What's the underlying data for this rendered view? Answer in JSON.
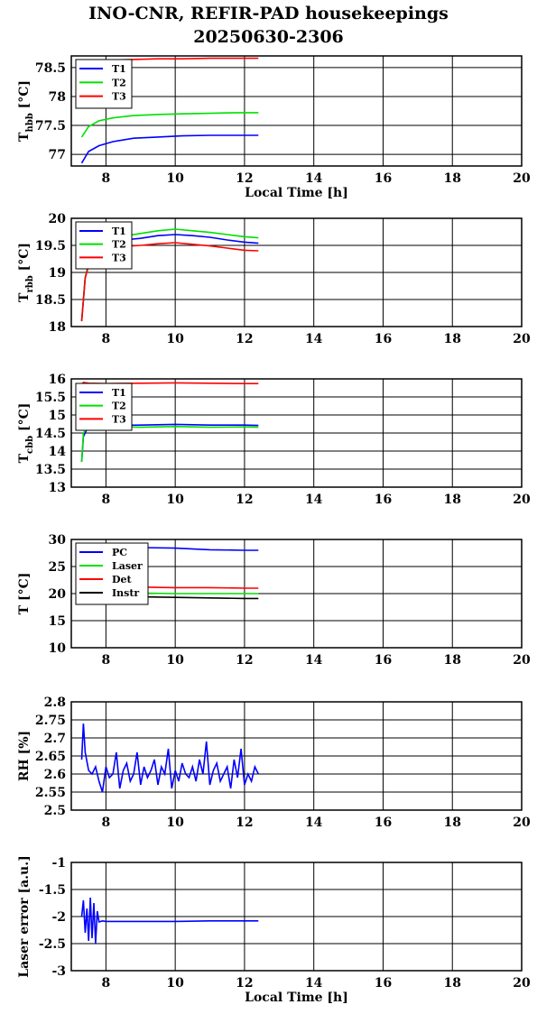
{
  "title": "INO-CNR, REFIR-PAD housekeepings",
  "subtitle": "20250630-2306",
  "colors": {
    "blue": "#0000ff",
    "green": "#00e000",
    "red": "#ff0000",
    "black": "#000000"
  },
  "chart_data": [
    {
      "type": "line",
      "ylabel": {
        "main": "T",
        "sub": "hbb",
        "unit": " [°C]"
      },
      "xlabel": "Local Time [h]",
      "xlim": [
        7,
        20
      ],
      "ylim": [
        76.8,
        78.7
      ],
      "xticks": [
        8,
        10,
        12,
        14,
        16,
        18,
        20
      ],
      "yticks": [
        77,
        77.5,
        78,
        78.5
      ],
      "ytick_labels": [
        "77",
        "77.5",
        "78",
        "78.5"
      ],
      "grid": true,
      "legend": "top-left",
      "series": [
        {
          "name": "T1",
          "color": "#0000ff",
          "x": [
            7.3,
            7.5,
            7.8,
            8.2,
            8.8,
            9.5,
            10.2,
            11,
            11.8,
            12.4
          ],
          "y": [
            76.85,
            77.05,
            77.15,
            77.22,
            77.28,
            77.3,
            77.32,
            77.33,
            77.33,
            77.33
          ]
        },
        {
          "name": "T2",
          "color": "#00e000",
          "x": [
            7.3,
            7.5,
            7.8,
            8.2,
            8.8,
            9.5,
            10.2,
            11,
            11.8,
            12.4
          ],
          "y": [
            77.3,
            77.48,
            77.58,
            77.63,
            77.67,
            77.69,
            77.7,
            77.71,
            77.72,
            77.72
          ]
        },
        {
          "name": "T3",
          "color": "#ff0000",
          "x": [
            7.3,
            7.5,
            7.8,
            8.2,
            8.8,
            9.5,
            10.2,
            11,
            11.8,
            12.4
          ],
          "y": [
            78.55,
            78.6,
            78.62,
            78.63,
            78.64,
            78.65,
            78.65,
            78.66,
            78.66,
            78.66
          ]
        }
      ]
    },
    {
      "type": "line",
      "ylabel": {
        "main": "T",
        "sub": "rbb",
        "unit": " [°C]"
      },
      "xlabel": "",
      "xlim": [
        7,
        20
      ],
      "ylim": [
        18,
        20
      ],
      "xticks": [
        8,
        10,
        12,
        14,
        16,
        18,
        20
      ],
      "yticks": [
        18,
        18.5,
        19,
        19.5,
        20
      ],
      "ytick_labels": [
        "18",
        "18.5",
        "19",
        "19.5",
        "20"
      ],
      "grid": true,
      "legend": "top-left",
      "series": [
        {
          "name": "T1",
          "color": "#0000ff",
          "x": [
            7.3,
            7.4,
            7.6,
            8,
            8.5,
            9,
            9.5,
            10,
            10.5,
            11,
            11.5,
            12,
            12.4
          ],
          "y": [
            18.1,
            18.9,
            19.4,
            19.55,
            19.6,
            19.63,
            19.68,
            19.7,
            19.68,
            19.65,
            19.6,
            19.56,
            19.54
          ]
        },
        {
          "name": "T2",
          "color": "#00e000",
          "x": [
            7.3,
            7.4,
            7.6,
            8,
            8.5,
            9,
            9.5,
            10,
            10.5,
            11,
            11.5,
            12,
            12.4
          ],
          "y": [
            18.1,
            18.9,
            19.45,
            19.6,
            19.67,
            19.72,
            19.77,
            19.8,
            19.77,
            19.74,
            19.7,
            19.66,
            19.64
          ]
        },
        {
          "name": "T3",
          "color": "#ff0000",
          "x": [
            7.3,
            7.4,
            7.6,
            8,
            8.5,
            9,
            9.5,
            10,
            10.5,
            11,
            11.5,
            12,
            12.4
          ],
          "y": [
            18.1,
            18.9,
            19.35,
            19.45,
            19.48,
            19.5,
            19.53,
            19.55,
            19.52,
            19.49,
            19.45,
            19.41,
            19.4
          ]
        }
      ]
    },
    {
      "type": "line",
      "ylabel": {
        "main": "T",
        "sub": "cbb",
        "unit": " [°C]"
      },
      "xlabel": "",
      "xlim": [
        7,
        20
      ],
      "ylim": [
        13,
        16
      ],
      "xticks": [
        8,
        10,
        12,
        14,
        16,
        18,
        20
      ],
      "yticks": [
        13,
        13.5,
        14,
        14.5,
        15,
        15.5,
        16
      ],
      "ytick_labels": [
        "13",
        "13.5",
        "14",
        "14.5",
        "15",
        "15.5",
        "16"
      ],
      "grid": true,
      "legend": "top-left",
      "series": [
        {
          "name": "T1",
          "color": "#0000ff",
          "x": [
            7.3,
            7.35,
            7.5,
            8,
            9,
            10,
            11,
            12,
            12.4
          ],
          "y": [
            13.7,
            14.4,
            14.7,
            14.71,
            14.72,
            14.74,
            14.72,
            14.72,
            14.71
          ]
        },
        {
          "name": "T2",
          "color": "#00e000",
          "x": [
            7.3,
            7.35,
            7.5,
            8,
            9,
            10,
            11,
            12,
            12.4
          ],
          "y": [
            13.7,
            14.5,
            14.68,
            14.68,
            14.66,
            14.68,
            14.66,
            14.67,
            14.66
          ]
        },
        {
          "name": "T3",
          "color": "#ff0000",
          "x": [
            7.3,
            7.35,
            7.5,
            8,
            9,
            10,
            11,
            12,
            12.4
          ],
          "y": [
            15.85,
            15.9,
            15.88,
            15.87,
            15.88,
            15.89,
            15.88,
            15.87,
            15.87
          ]
        }
      ]
    },
    {
      "type": "line",
      "ylabel": {
        "main": "T",
        "sub": "",
        "unit": " [°C]"
      },
      "xlabel": "",
      "xlim": [
        7,
        20
      ],
      "ylim": [
        10,
        30
      ],
      "xticks": [
        8,
        10,
        12,
        14,
        16,
        18,
        20
      ],
      "yticks": [
        10,
        15,
        20,
        25,
        30
      ],
      "ytick_labels": [
        "10",
        "15",
        "20",
        "25",
        "30"
      ],
      "grid": true,
      "legend": "top-left",
      "series": [
        {
          "name": "PC",
          "color": "#0000ff",
          "x": [
            7.3,
            8,
            9,
            10,
            11,
            12,
            12.4
          ],
          "y": [
            28.6,
            28.6,
            28.5,
            28.4,
            28.1,
            28,
            28
          ]
        },
        {
          "name": "Laser",
          "color": "#00e000",
          "x": [
            7.3,
            8,
            9,
            10,
            11,
            12,
            12.4
          ],
          "y": [
            20,
            20.1,
            20.1,
            20,
            20,
            20,
            20
          ]
        },
        {
          "name": "Det",
          "color": "#ff0000",
          "x": [
            7.3,
            8,
            9,
            10,
            11,
            12,
            12.4
          ],
          "y": [
            21,
            21.1,
            21.2,
            21.1,
            21.1,
            21,
            21
          ]
        },
        {
          "name": "Instr",
          "color": "#000000",
          "x": [
            7.3,
            8,
            9,
            10,
            11,
            12,
            12.4
          ],
          "y": [
            19.6,
            19.5,
            19.4,
            19.3,
            19.2,
            19.1,
            19.1
          ]
        }
      ]
    },
    {
      "type": "line",
      "ylabel": {
        "main": "RH [%]",
        "sub": "",
        "unit": ""
      },
      "xlabel": "",
      "xlim": [
        7,
        20
      ],
      "ylim": [
        2.5,
        2.8
      ],
      "xticks": [
        8,
        10,
        12,
        14,
        16,
        18,
        20
      ],
      "yticks": [
        2.5,
        2.55,
        2.6,
        2.65,
        2.7,
        2.75,
        2.8
      ],
      "ytick_labels": [
        "2.5",
        "2.55",
        "2.6",
        "2.65",
        "2.7",
        "2.75",
        "2.8"
      ],
      "grid": true,
      "legend": "none",
      "series": [
        {
          "name": "",
          "color": "#0000ff",
          "x": [
            7.3,
            7.35,
            7.4,
            7.5,
            7.6,
            7.7,
            7.8,
            7.9,
            8,
            8.1,
            8.2,
            8.3,
            8.4,
            8.5,
            8.6,
            8.7,
            8.8,
            8.9,
            9,
            9.1,
            9.2,
            9.3,
            9.4,
            9.5,
            9.6,
            9.7,
            9.8,
            9.9,
            10,
            10.1,
            10.2,
            10.3,
            10.4,
            10.5,
            10.6,
            10.7,
            10.8,
            10.9,
            11,
            11.1,
            11.2,
            11.3,
            11.4,
            11.5,
            11.6,
            11.7,
            11.8,
            11.9,
            12,
            12.1,
            12.2,
            12.3,
            12.4
          ],
          "y": [
            2.64,
            2.74,
            2.66,
            2.61,
            2.6,
            2.62,
            2.58,
            2.55,
            2.62,
            2.59,
            2.6,
            2.66,
            2.56,
            2.61,
            2.63,
            2.58,
            2.6,
            2.66,
            2.57,
            2.62,
            2.59,
            2.61,
            2.64,
            2.57,
            2.62,
            2.6,
            2.67,
            2.56,
            2.61,
            2.58,
            2.63,
            2.6,
            2.59,
            2.62,
            2.58,
            2.64,
            2.6,
            2.69,
            2.57,
            2.61,
            2.63,
            2.58,
            2.6,
            2.62,
            2.56,
            2.64,
            2.59,
            2.67,
            2.57,
            2.6,
            2.58,
            2.62,
            2.6
          ]
        }
      ]
    },
    {
      "type": "line",
      "ylabel": {
        "main": "Laser error [a.u.]",
        "sub": "",
        "unit": ""
      },
      "xlabel": "Local Time [h]",
      "xlim": [
        7,
        20
      ],
      "ylim": [
        -3,
        -1
      ],
      "xticks": [
        8,
        10,
        12,
        14,
        16,
        18,
        20
      ],
      "yticks": [
        -3,
        -2.5,
        -2,
        -1.5,
        -1
      ],
      "ytick_labels": [
        "-3",
        "-2.5",
        "-2",
        "-1.5",
        "-1"
      ],
      "grid": true,
      "legend": "none",
      "series": [
        {
          "name": "",
          "color": "#0000ff",
          "x": [
            7.3,
            7.35,
            7.4,
            7.45,
            7.5,
            7.55,
            7.6,
            7.65,
            7.7,
            7.75,
            7.8,
            7.9,
            8,
            9,
            10,
            11,
            12,
            12.4
          ],
          "y": [
            -2.0,
            -1.7,
            -2.3,
            -1.85,
            -2.45,
            -1.65,
            -2.4,
            -1.75,
            -2.5,
            -1.9,
            -2.1,
            -2.08,
            -2.09,
            -2.09,
            -2.09,
            -2.08,
            -2.08,
            -2.08
          ]
        }
      ]
    }
  ]
}
